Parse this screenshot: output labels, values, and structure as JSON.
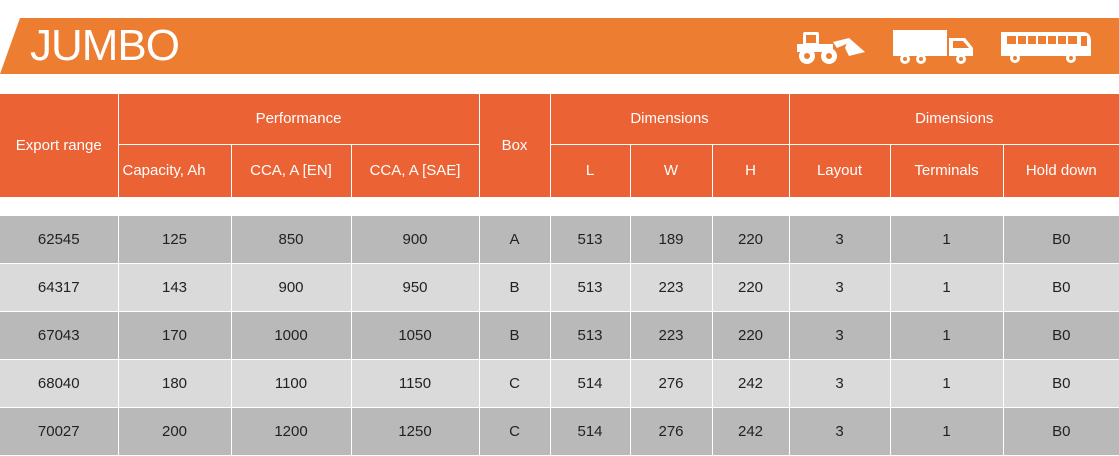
{
  "banner": {
    "title": "JUMBO",
    "icons": [
      "loader-icon",
      "truck-icon",
      "bus-icon"
    ],
    "color": "#ed7d31"
  },
  "table": {
    "header_color": "#eb6235",
    "groups": {
      "export_range": "Export range",
      "performance": "Performance",
      "box": "Box",
      "dimensions_1": "Dimensions",
      "dimensions_2": "Dimensions"
    },
    "sub": {
      "capacity": "Capacity, Ah",
      "cca_en": "CCA, A [EN]",
      "cca_sae": "CCA, A [SAE]",
      "l": "L",
      "w": "W",
      "h": "H",
      "layout": "Layout",
      "terminals": "Terminals",
      "hold_down": "Hold down"
    },
    "rows": [
      [
        "62545",
        "125",
        "850",
        "900",
        "A",
        "513",
        "189",
        "220",
        "3",
        "1",
        "B0"
      ],
      [
        "64317",
        "143",
        "900",
        "950",
        "B",
        "513",
        "223",
        "220",
        "3",
        "1",
        "B0"
      ],
      [
        "67043",
        "170",
        "1000",
        "1050",
        "B",
        "513",
        "223",
        "220",
        "3",
        "1",
        "B0"
      ],
      [
        "68040",
        "180",
        "1100",
        "1150",
        "C",
        "514",
        "276",
        "242",
        "3",
        "1",
        "B0"
      ],
      [
        "70027",
        "200",
        "1200",
        "1250",
        "C",
        "514",
        "276",
        "242",
        "3",
        "1",
        "B0"
      ]
    ]
  }
}
